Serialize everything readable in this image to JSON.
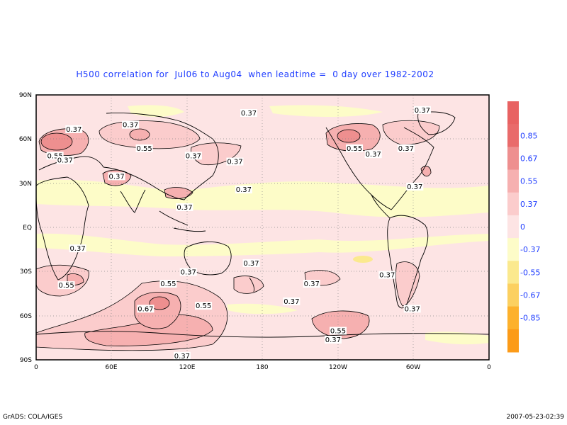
{
  "title": "H500 correlation for  Jul06 to Aug04  when leadtime =  0 day over 1982-2002",
  "footer": {
    "left": "GrADS: COLA/IGES",
    "right": "2007-05-23-02:39"
  },
  "axes": {
    "y_ticks": [
      "90N",
      "60N",
      "30N",
      "EQ",
      "30S",
      "60S",
      "90S"
    ],
    "x_ticks": [
      "0",
      "60E",
      "120E",
      "180",
      "120W",
      "60W",
      "0"
    ]
  },
  "colorbar": [
    {
      "label": "0.85",
      "color": "#e96b6b"
    },
    {
      "label": "0.67",
      "color": "#ee8f8f"
    },
    {
      "label": "0.55",
      "color": "#f6b0b0"
    },
    {
      "label": "0.37",
      "color": "#fbcccc"
    },
    {
      "label": "0",
      "color": "#fde4e4"
    },
    {
      "label": "-0.37",
      "color": "#fdfcc8"
    },
    {
      "label": "-0.55",
      "color": "#fbe98e"
    },
    {
      "label": "-0.67",
      "color": "#fcd060"
    },
    {
      "label": "-0.85",
      "color": "#fdb12c"
    }
  ],
  "colorbar_extra": [
    "#e86262",
    "#fc9b18"
  ],
  "contour_labels": [
    {
      "text": "0.37",
      "lon": 169,
      "lat": 77
    },
    {
      "text": "0.37",
      "lon": 75,
      "lat": 69
    },
    {
      "text": "0.55",
      "lon": 86,
      "lat": 53
    },
    {
      "text": "0.37",
      "lon": 125,
      "lat": 48
    },
    {
      "text": "0.37",
      "lon": 158,
      "lat": 44
    },
    {
      "text": "0.37",
      "lon": 30,
      "lat": 66
    },
    {
      "text": "0.55",
      "lon": 15,
      "lat": 48
    },
    {
      "text": "0.37",
      "lon": 23,
      "lat": 45
    },
    {
      "text": "0.37",
      "lon": 64,
      "lat": 34
    },
    {
      "text": "0.37",
      "lon": 165,
      "lat": 25
    },
    {
      "text": "0.37",
      "lon": 118,
      "lat": 13
    },
    {
      "text": "0.37",
      "lon": 307,
      "lat": 79
    },
    {
      "text": "0.55",
      "lon": 253,
      "lat": 53
    },
    {
      "text": "0.37",
      "lon": 268,
      "lat": 49
    },
    {
      "text": "0.37",
      "lon": 294,
      "lat": 53
    },
    {
      "text": "0.37",
      "lon": 301,
      "lat": 27
    },
    {
      "text": "0.37",
      "lon": 33,
      "lat": -15
    },
    {
      "text": "0.55",
      "lon": 24,
      "lat": -40
    },
    {
      "text": "0.37",
      "lon": 121,
      "lat": -31
    },
    {
      "text": "0.37",
      "lon": 171,
      "lat": -25
    },
    {
      "text": "0.55",
      "lon": 105,
      "lat": -39
    },
    {
      "text": "0.67",
      "lon": 87,
      "lat": -56
    },
    {
      "text": "0.55",
      "lon": 133,
      "lat": -54
    },
    {
      "text": "0.37",
      "lon": 219,
      "lat": -39
    },
    {
      "text": "0.37",
      "lon": 203,
      "lat": -51
    },
    {
      "text": "0.37",
      "lon": 279,
      "lat": -33
    },
    {
      "text": "0.37",
      "lon": 299,
      "lat": -56
    },
    {
      "text": "0.55",
      "lon": 240,
      "lat": -71
    },
    {
      "text": "0.37",
      "lon": 236,
      "lat": -77
    },
    {
      "text": "0.37",
      "lon": 116,
      "lat": -88
    }
  ]
}
